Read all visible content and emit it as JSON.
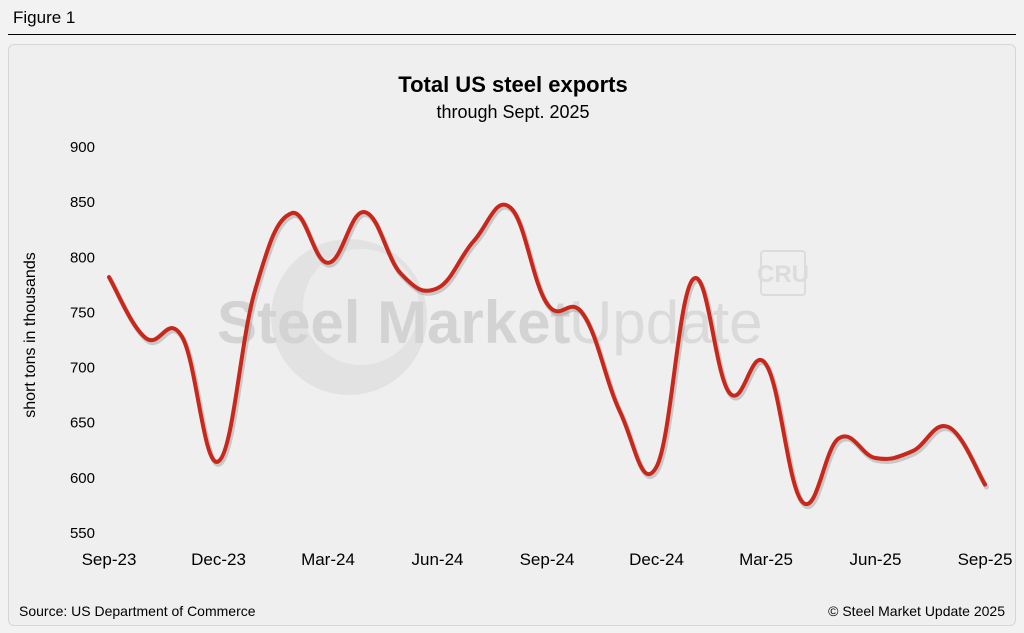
{
  "figure_label": "Figure 1",
  "watermark": {
    "brand_bold": "Steel Market",
    "brand_light": "Update",
    "badge": "CRU"
  },
  "footer": {
    "source": "Source: US Department of Commerce",
    "copyright": "© Steel Market Update 2025"
  },
  "colors": {
    "line": "#c8281c",
    "background": "#efefef"
  },
  "chart_data": {
    "type": "line",
    "title": "Total US steel exports",
    "subtitle": "through Sept. 2025",
    "xlabel": "",
    "ylabel": "short tons in thousands",
    "ylim": [
      550,
      900
    ],
    "yticks": [
      900,
      850,
      800,
      750,
      700,
      650,
      600,
      550
    ],
    "xtick_labels": [
      "Sep-23",
      "Dec-23",
      "Mar-24",
      "Jun-24",
      "Sep-24",
      "Dec-24",
      "Mar-25",
      "Jun-25",
      "Sep-25"
    ],
    "grid": false,
    "series": [
      {
        "name": "Total US steel exports",
        "x": [
          "Sep-23",
          "Oct-23",
          "Nov-23",
          "Dec-23",
          "Jan-24",
          "Feb-24",
          "Mar-24",
          "Apr-24",
          "May-24",
          "Jun-24",
          "Jul-24",
          "Aug-24",
          "Sep-24",
          "Oct-24",
          "Nov-24",
          "Dec-24",
          "Jan-25",
          "Feb-25",
          "Mar-25",
          "Apr-25",
          "May-25",
          "Jun-25",
          "Jul-25",
          "Aug-25",
          "Sep-25"
        ],
        "values": [
          782,
          727,
          728,
          615,
          770,
          840,
          795,
          841,
          785,
          772,
          815,
          845,
          758,
          748,
          660,
          610,
          780,
          677,
          703,
          578,
          636,
          618,
          624,
          646,
          594
        ]
      }
    ]
  }
}
